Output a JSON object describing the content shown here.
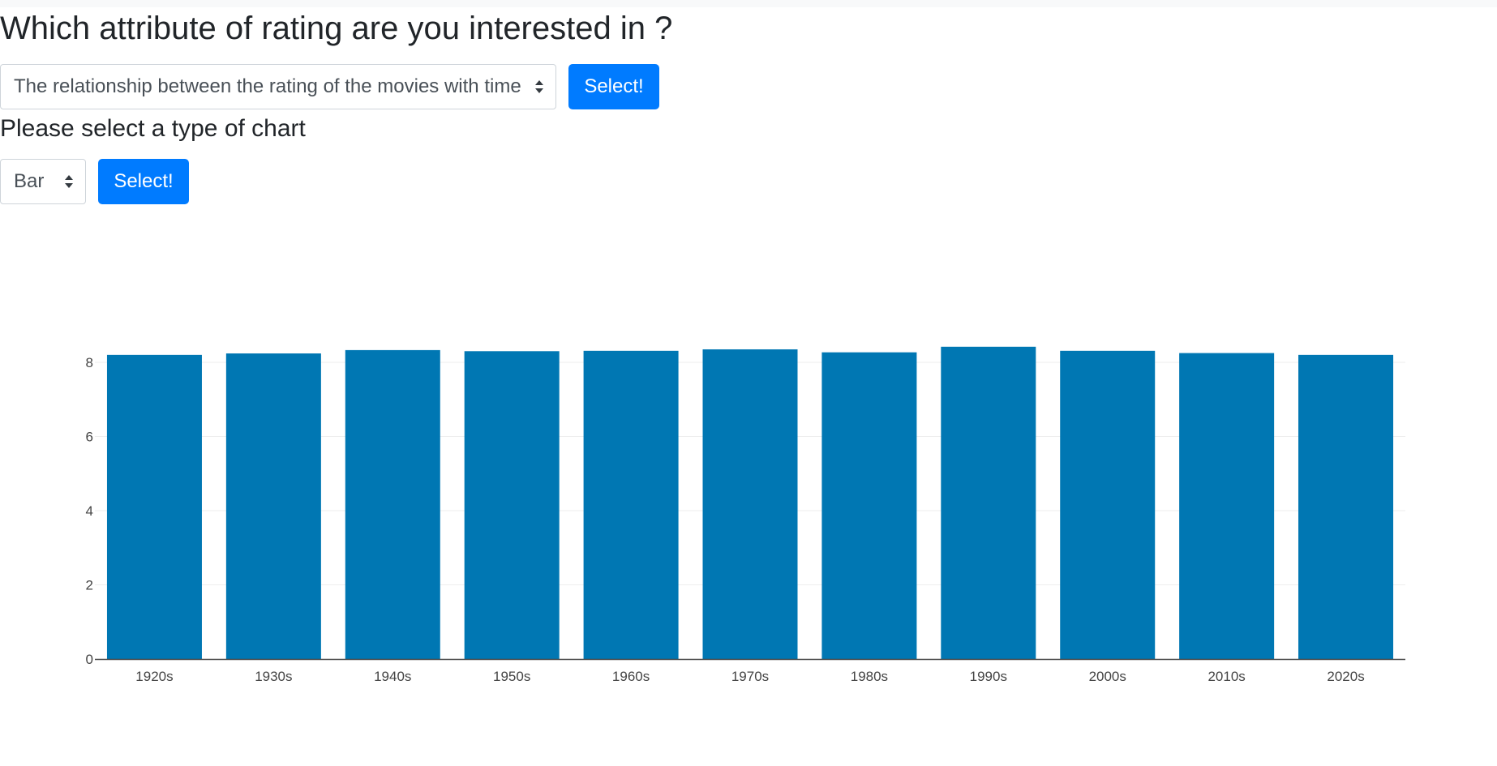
{
  "header": {
    "title": "Which attribute of rating are you interested in ?"
  },
  "attribute_select": {
    "selected": "The relationship between the rating of the movies with time",
    "button_label": "Select!"
  },
  "chart_type": {
    "heading": "Please select a type of chart",
    "selected": "Bar",
    "button_label": "Select!"
  },
  "colors": {
    "bar": "#0077b3",
    "button": "#007bff"
  },
  "chart_data": {
    "type": "bar",
    "categories": [
      "1920s",
      "1930s",
      "1940s",
      "1950s",
      "1960s",
      "1970s",
      "1980s",
      "1990s",
      "2000s",
      "2010s",
      "2020s"
    ],
    "values": [
      8.2,
      8.24,
      8.33,
      8.3,
      8.31,
      8.35,
      8.27,
      8.42,
      8.31,
      8.25,
      8.2
    ],
    "title": "",
    "xlabel": "",
    "ylabel": "",
    "ylim": [
      0,
      8.4
    ],
    "yticks": [
      0,
      2,
      4,
      6,
      8
    ],
    "grid": true
  }
}
